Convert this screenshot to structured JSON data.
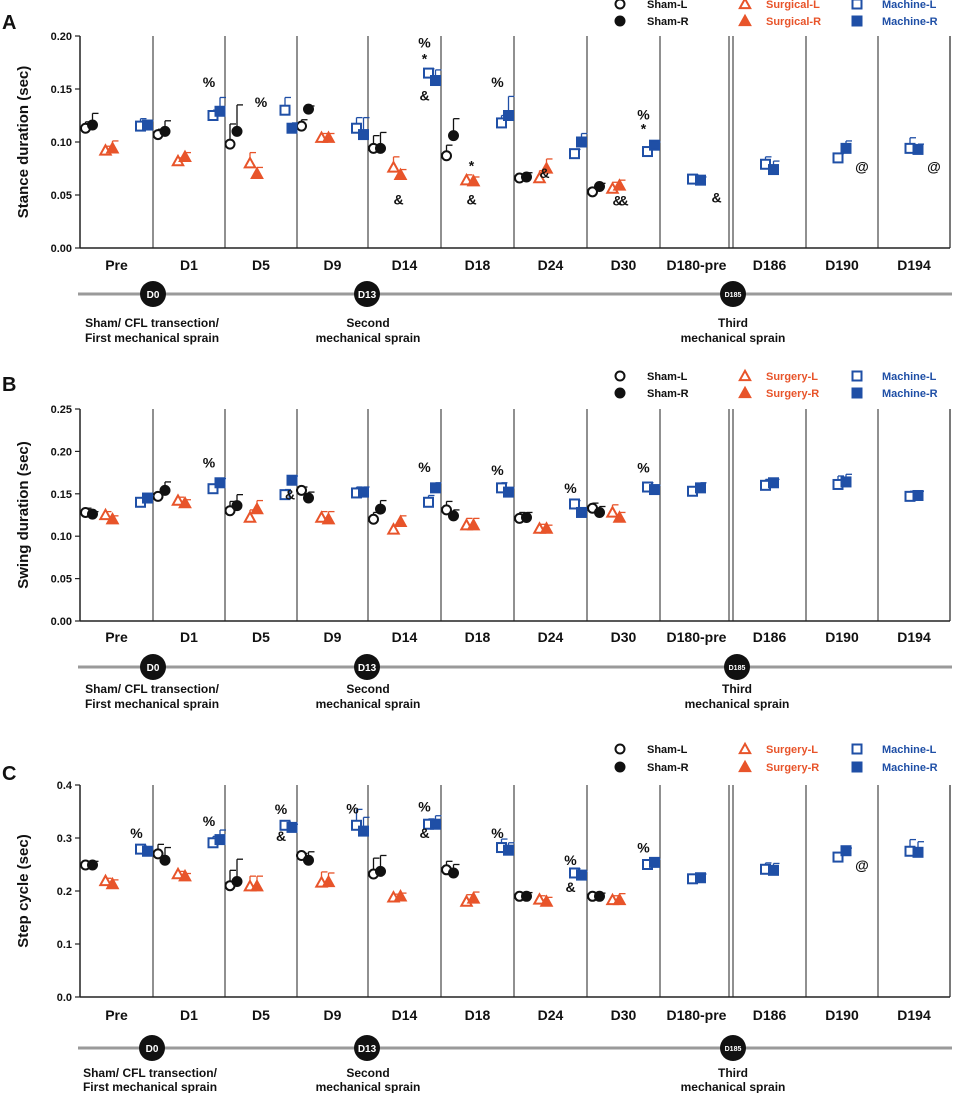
{
  "figure": {
    "panel_letters": [
      "A",
      "B",
      "C"
    ]
  },
  "colors": {
    "sham": "#111111",
    "surgical": "#e8542a",
    "machine": "#1f4fa6",
    "axis": "#222222",
    "timeline": "#9a9a9a"
  },
  "timeline_labels": {
    "d0_badge": "D0",
    "d13_badge": "D13",
    "d185_badge": "D185",
    "d0_line1": "Sham/ CFL transection/",
    "d0_line2": "First mechanical sprain",
    "d13_line1": "Second",
    "d13_line2": "mechanical sprain",
    "d185_line1": "Third",
    "d185_line2": "mechanical sprain"
  },
  "chart_data": [
    {
      "type": "scatter",
      "panel": "A",
      "ylabel": "Stance duration (sec)",
      "ylim": [
        0,
        0.2
      ],
      "yticks": [
        "0.00",
        "0.05",
        "0.10",
        "0.15",
        "0.20"
      ],
      "categories": [
        "Pre",
        "D1",
        "D5",
        "D9",
        "D14",
        "D18",
        "D24",
        "D30",
        "D180-pre",
        "D186",
        "D190",
        "D194"
      ],
      "legend": [
        "Sham-L",
        "Sham-R",
        "Surgical-L",
        "Surgical-R",
        "Machine-L",
        "Machine-R"
      ],
      "series": [
        {
          "name": "Sham-L",
          "values": [
            0.113,
            0.107,
            0.098,
            0.115,
            0.094,
            0.087,
            0.066,
            0.053,
            null,
            null,
            null,
            null
          ],
          "err": [
            0.006,
            0.005,
            0.019,
            0.006,
            0.012,
            0.01,
            0.003,
            0.003,
            null,
            null,
            null,
            null
          ]
        },
        {
          "name": "Sham-R",
          "values": [
            0.116,
            0.11,
            0.11,
            0.131,
            0.094,
            0.106,
            0.067,
            0.058,
            null,
            null,
            null,
            null
          ],
          "err": [
            0.011,
            0.01,
            0.025,
            0.003,
            0.015,
            0.016,
            0.004,
            0.003,
            null,
            null,
            null,
            null
          ]
        },
        {
          "name": "Surgical-L",
          "values": [
            0.092,
            0.082,
            0.08,
            0.104,
            0.076,
            0.064,
            0.066,
            0.056,
            null,
            null,
            null,
            null
          ],
          "err": [
            0.004,
            0.003,
            0.01,
            0.004,
            0.01,
            0.005,
            0.007,
            0.006,
            null,
            null,
            null,
            null
          ]
        },
        {
          "name": "Surgical-R",
          "values": [
            0.094,
            0.086,
            0.07,
            0.104,
            0.069,
            0.063,
            0.075,
            0.059,
            null,
            null,
            null,
            null
          ],
          "err": [
            0.007,
            0.004,
            0.006,
            0.004,
            0.005,
            0.004,
            0.009,
            0.005,
            null,
            null,
            null,
            null
          ]
        },
        {
          "name": "Machine-L",
          "values": [
            0.115,
            0.125,
            0.13,
            0.113,
            0.165,
            0.118,
            0.089,
            0.091,
            0.065,
            0.079,
            0.085,
            0.094
          ],
          "err": [
            0.007,
            0.005,
            0.012,
            0.01,
            0.004,
            0.007,
            0.004,
            0.003,
            0.004,
            0.007,
            0.004,
            0.01
          ]
        },
        {
          "name": "Machine-R",
          "values": [
            0.116,
            0.129,
            0.113,
            0.107,
            0.158,
            0.125,
            0.1,
            0.097,
            0.064,
            0.074,
            0.094,
            0.093
          ],
          "err": [
            0.004,
            0.013,
            0.005,
            0.016,
            0.01,
            0.018,
            0.008,
            0.003,
            0.003,
            0.008,
            0.007,
            0.005
          ]
        }
      ],
      "annotations": [
        {
          "text": "%",
          "category": "D1",
          "side": "right",
          "y": 0.152
        },
        {
          "text": "%",
          "category": "D5",
          "side": "center",
          "y": 0.133
        },
        {
          "text": "%",
          "category": "D14",
          "side": "right",
          "y": 0.189
        },
        {
          "text": "*",
          "category": "D14",
          "side": "right",
          "y": 0.174
        },
        {
          "text": "&",
          "category": "D14",
          "side": "right",
          "y": 0.139
        },
        {
          "text": "&",
          "category": "D14",
          "side": "left",
          "y": 0.041
        },
        {
          "text": "*",
          "category": "D18",
          "side": "left",
          "y": 0.073
        },
        {
          "text": "&",
          "category": "D18",
          "side": "left",
          "y": 0.041
        },
        {
          "text": "%",
          "category": "D18",
          "side": "right",
          "y": 0.152
        },
        {
          "text": "&",
          "category": "D24",
          "side": "left",
          "y": 0.066
        },
        {
          "text": "%",
          "category": "D30",
          "side": "right",
          "y": 0.121
        },
        {
          "text": "*",
          "category": "D30",
          "side": "right",
          "y": 0.108
        },
        {
          "text": "&",
          "category": "D30",
          "side": "left",
          "y": 0.04
        },
        {
          "text": "&",
          "category": "D30",
          "side": "center",
          "y": 0.04
        },
        {
          "text": "&",
          "category": "D180-pre",
          "side": "right",
          "y": 0.043
        },
        {
          "text": "@",
          "category": "D190",
          "side": "right",
          "y": 0.072
        },
        {
          "text": "@",
          "category": "D194",
          "side": "right",
          "y": 0.072
        }
      ]
    },
    {
      "type": "scatter",
      "panel": "B",
      "ylabel": "Swing duration  (sec)",
      "ylim": [
        0,
        0.25
      ],
      "yticks": [
        "0.00",
        "0.05",
        "0.10",
        "0.15",
        "0.20",
        "0.25"
      ],
      "categories": [
        "Pre",
        "D1",
        "D5",
        "D9",
        "D14",
        "D18",
        "D24",
        "D30",
        "D180-pre",
        "D186",
        "D190",
        "D194"
      ],
      "legend": [
        "Sham-L",
        "Sham-R",
        "Surgery-L",
        "Surgery-R",
        "Machine-L",
        "Machine-R"
      ],
      "series": [
        {
          "name": "Sham-L",
          "values": [
            0.128,
            0.147,
            0.13,
            0.154,
            0.12,
            0.131,
            0.121,
            0.133,
            null,
            null,
            null,
            null
          ],
          "err": [
            0.005,
            0.005,
            0.011,
            0.004,
            0.008,
            0.01,
            0.007,
            0.006,
            null,
            null,
            null,
            null
          ]
        },
        {
          "name": "Sham-R",
          "values": [
            0.126,
            0.154,
            0.136,
            0.145,
            0.132,
            0.124,
            0.122,
            0.128,
            null,
            null,
            null,
            null
          ],
          "err": [
            0.003,
            0.01,
            0.013,
            0.007,
            0.01,
            0.007,
            0.006,
            0.007,
            null,
            null,
            null,
            null
          ]
        },
        {
          "name": "Surgery-L",
          "values": [
            0.125,
            0.142,
            0.122,
            0.122,
            0.108,
            0.113,
            0.109,
            0.128,
            null,
            null,
            null,
            null
          ],
          "err": [
            0.004,
            0.004,
            0.009,
            0.007,
            0.005,
            0.008,
            0.005,
            0.009,
            null,
            null,
            null,
            null
          ]
        },
        {
          "name": "Surgery-R",
          "values": [
            0.12,
            0.139,
            0.132,
            0.12,
            0.117,
            0.113,
            0.109,
            0.122,
            null,
            null,
            null,
            null
          ],
          "err": [
            0.004,
            0.004,
            0.01,
            0.009,
            0.007,
            0.008,
            0.004,
            0.006,
            null,
            null,
            null,
            null
          ]
        },
        {
          "name": "Machine-L",
          "values": [
            0.14,
            0.156,
            0.149,
            0.151,
            0.14,
            0.157,
            0.138,
            0.158,
            0.153,
            0.16,
            0.161,
            0.147
          ],
          "err": [
            0.004,
            0.004,
            0.006,
            0.007,
            0.008,
            0.006,
            0.004,
            0.005,
            0.005,
            0.007,
            0.01,
            0.006
          ]
        },
        {
          "name": "Machine-R",
          "values": [
            0.145,
            0.163,
            0.166,
            0.152,
            0.157,
            0.152,
            0.128,
            0.155,
            0.157,
            0.163,
            0.164,
            0.148
          ],
          "err": [
            0.003,
            0.005,
            0.005,
            0.006,
            0.006,
            0.005,
            0.003,
            0.005,
            0.006,
            0.004,
            0.009,
            0.005
          ]
        }
      ],
      "annotations": [
        {
          "text": "%",
          "category": "D1",
          "side": "right",
          "y": 0.181
        },
        {
          "text": "&",
          "category": "D5",
          "side": "edge",
          "y": 0.143
        },
        {
          "text": "%",
          "category": "D14",
          "side": "right",
          "y": 0.176
        },
        {
          "text": "%",
          "category": "D18",
          "side": "right",
          "y": 0.172
        },
        {
          "text": "%",
          "category": "D24",
          "side": "right",
          "y": 0.151
        },
        {
          "text": "%",
          "category": "D30",
          "side": "right",
          "y": 0.175
        }
      ]
    },
    {
      "type": "scatter",
      "panel": "C",
      "ylabel": "Step cycle (sec)",
      "ylim": [
        0,
        0.4
      ],
      "yticks": [
        "0.0",
        "0.1",
        "0.2",
        "0.3",
        "0.4"
      ],
      "categories": [
        "Pre",
        "D1",
        "D5",
        "D9",
        "D14",
        "D18",
        "D24",
        "D30",
        "D180-pre",
        "D186",
        "D190",
        "D194"
      ],
      "legend": [
        "Sham-L",
        "Sham-R",
        "Surgery-L",
        "Surgery-R",
        "Machine-L",
        "Machine-R"
      ],
      "series": [
        {
          "name": "Sham-L",
          "values": [
            0.249,
            0.27,
            0.21,
            0.267,
            0.232,
            0.24,
            0.19,
            0.19,
            null,
            null,
            null,
            null
          ],
          "err": [
            0.007,
            0.018,
            0.029,
            0.004,
            0.03,
            0.016,
            0.007,
            0.007,
            null,
            null,
            null,
            null
          ]
        },
        {
          "name": "Sham-R",
          "values": [
            0.249,
            0.258,
            0.218,
            0.258,
            0.237,
            0.234,
            0.19,
            0.19,
            null,
            null,
            null,
            null
          ],
          "err": [
            0.007,
            0.024,
            0.042,
            0.016,
            0.03,
            0.016,
            0.007,
            0.006,
            null,
            null,
            null,
            null
          ]
        },
        {
          "name": "Surgery-L",
          "values": [
            0.219,
            0.232,
            0.209,
            0.216,
            0.188,
            0.18,
            0.184,
            0.183,
            null,
            null,
            null,
            null
          ],
          "err": [
            0.005,
            0.005,
            0.019,
            0.02,
            0.006,
            0.013,
            0.007,
            0.008,
            null,
            null,
            null,
            null
          ]
        },
        {
          "name": "Surgery-R",
          "values": [
            0.213,
            0.228,
            0.209,
            0.217,
            0.19,
            0.186,
            0.18,
            0.183,
            null,
            null,
            null,
            null
          ],
          "err": [
            0.008,
            0.005,
            0.019,
            0.017,
            0.006,
            0.012,
            0.008,
            0.012,
            null,
            null,
            null,
            null
          ]
        },
        {
          "name": "Machine-L",
          "values": [
            0.279,
            0.291,
            0.324,
            0.324,
            0.326,
            0.282,
            0.234,
            0.25,
            0.223,
            0.241,
            0.264,
            0.275
          ],
          "err": [
            0.007,
            0.012,
            0.006,
            0.03,
            0.01,
            0.016,
            0.008,
            0.006,
            0.006,
            0.012,
            0.003,
            0.022
          ]
        },
        {
          "name": "Machine-R",
          "values": [
            0.275,
            0.297,
            0.32,
            0.313,
            0.326,
            0.277,
            0.23,
            0.254,
            0.225,
            0.239,
            0.276,
            0.273
          ],
          "err": [
            0.006,
            0.018,
            0.006,
            0.026,
            0.016,
            0.014,
            0.007,
            0.006,
            0.007,
            0.013,
            0.005,
            0.02
          ]
        }
      ],
      "annotations": [
        {
          "text": "%",
          "category": "Pre",
          "side": "right",
          "y": 0.3
        },
        {
          "text": "%",
          "category": "D1",
          "side": "right",
          "y": 0.323
        },
        {
          "text": "%",
          "category": "D5",
          "side": "right",
          "y": 0.345
        },
        {
          "text": "&",
          "category": "D5",
          "side": "right",
          "y": 0.294
        },
        {
          "text": "%",
          "category": "D9",
          "side": "right",
          "y": 0.346
        },
        {
          "text": "%",
          "category": "D14",
          "side": "right",
          "y": 0.35
        },
        {
          "text": "&",
          "category": "D14",
          "side": "right",
          "y": 0.3
        },
        {
          "text": "%",
          "category": "D18",
          "side": "right",
          "y": 0.3
        },
        {
          "text": "%",
          "category": "D24",
          "side": "right",
          "y": 0.249
        },
        {
          "text": "&",
          "category": "D24",
          "side": "right",
          "y": 0.198
        },
        {
          "text": "%",
          "category": "D30",
          "side": "right",
          "y": 0.273
        },
        {
          "text": "@",
          "category": "D190",
          "side": "right",
          "y": 0.24
        }
      ]
    }
  ]
}
